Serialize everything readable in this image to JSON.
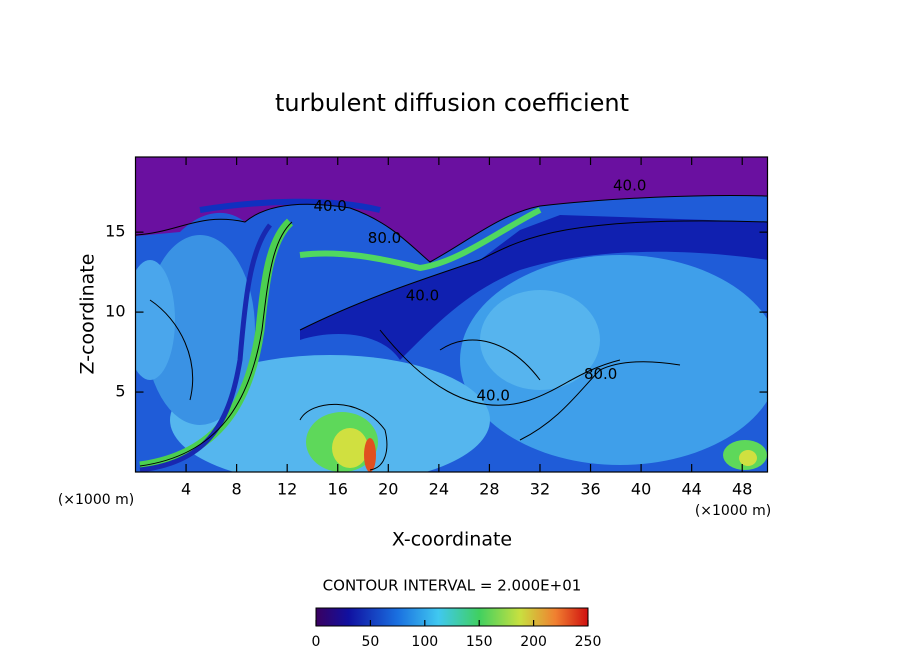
{
  "chart_data": {
    "type": "contour",
    "title": "turbulent diffusion coefficient",
    "x_label": "X-coordinate",
    "y_label": "Z-coordinate",
    "x_unit_labels": [
      "(×1000 m)",
      "(×1000 m)"
    ],
    "xlim": [
      0,
      50
    ],
    "xticks": [
      4,
      8,
      12,
      16,
      20,
      24,
      28,
      32,
      36,
      40,
      44,
      48
    ],
    "ylim": [
      0,
      19.7
    ],
    "yticks": [
      5,
      10,
      15
    ],
    "contour_labels": [
      {
        "text": "40.0",
        "x": 39.1,
        "z": 17.9
      },
      {
        "text": "40.0",
        "x": 15.4,
        "z": 16.6
      },
      {
        "text": "80.0",
        "x": 19.7,
        "z": 14.6
      },
      {
        "text": "40.0",
        "x": 22.7,
        "z": 11.0
      },
      {
        "text": "40.0",
        "x": 28.3,
        "z": 4.75
      },
      {
        "text": "80.0",
        "x": 36.8,
        "z": 6.1
      }
    ],
    "contour_interval": "CONTOUR INTERVAL = 2.000E+01",
    "colorbar": {
      "lim": [
        0,
        250
      ],
      "ticks": [
        0,
        50,
        100,
        150,
        200,
        250
      ]
    }
  }
}
